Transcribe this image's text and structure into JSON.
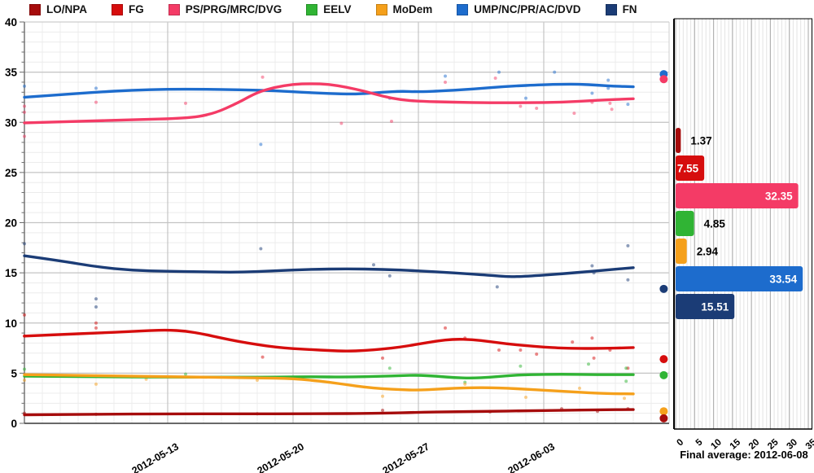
{
  "legend": [
    {
      "id": "lo",
      "label": "LO/NPA",
      "color": "#a60c0c"
    },
    {
      "id": "fg",
      "label": "FG",
      "color": "#d60d0d"
    },
    {
      "id": "ps",
      "label": "PS/PRG/MRC/DVG",
      "color": "#f43b66"
    },
    {
      "id": "eelv",
      "label": "EELV",
      "color": "#30b434"
    },
    {
      "id": "modem",
      "label": "MoDem",
      "color": "#f5a01b"
    },
    {
      "id": "ump",
      "label": "UMP/NC/PR/AC/DVD",
      "color": "#1d6ccd"
    },
    {
      "id": "fn",
      "label": "FN",
      "color": "#1b3c76"
    }
  ],
  "chart_data": [
    {
      "type": "line",
      "title": "",
      "ylim": [
        0,
        40
      ],
      "y_tick_step": 5,
      "y_minor_step": 1,
      "xlim_days": [
        0,
        36
      ],
      "x_minor_step_days": 1,
      "x_ticks": [
        {
          "label": "2012-05-13",
          "day": 8
        },
        {
          "label": "2012-05-20",
          "day": 15
        },
        {
          "label": "2012-05-27",
          "day": 22
        },
        {
          "label": "2012-06-03",
          "day": 29
        }
      ],
      "grid": true,
      "legend_position": "top",
      "series": [
        {
          "id": "fn",
          "name": "FN",
          "points": [
            [
              0,
              16.7
            ],
            [
              2,
              16.2
            ],
            [
              4,
              15.6
            ],
            [
              6,
              15.25
            ],
            [
              8,
              15.15
            ],
            [
              10,
              15.1
            ],
            [
              12,
              15.05
            ],
            [
              14,
              15.2
            ],
            [
              16,
              15.35
            ],
            [
              18,
              15.4
            ],
            [
              20,
              15.35
            ],
            [
              22,
              15.2
            ],
            [
              24,
              15.0
            ],
            [
              26,
              14.75
            ],
            [
              27,
              14.6
            ],
            [
              28,
              14.65
            ],
            [
              30,
              14.9
            ],
            [
              32,
              15.2
            ],
            [
              34,
              15.51
            ]
          ]
        },
        {
          "id": "ump",
          "name": "UMP/NC/PR/AC/DVD",
          "points": [
            [
              0,
              32.5
            ],
            [
              2,
              32.75
            ],
            [
              4,
              33.0
            ],
            [
              6,
              33.2
            ],
            [
              8,
              33.3
            ],
            [
              10,
              33.3
            ],
            [
              12,
              33.25
            ],
            [
              14,
              33.15
            ],
            [
              16,
              32.95
            ],
            [
              18,
              32.8
            ],
            [
              19,
              32.85
            ],
            [
              20,
              33.0
            ],
            [
              21,
              33.1
            ],
            [
              22,
              33.05
            ],
            [
              23,
              33.1
            ],
            [
              25,
              33.3
            ],
            [
              27,
              33.6
            ],
            [
              29,
              33.75
            ],
            [
              30,
              33.8
            ],
            [
              31,
              33.8
            ],
            [
              32,
              33.7
            ],
            [
              33,
              33.6
            ],
            [
              34,
              33.54
            ]
          ]
        },
        {
          "id": "fg",
          "name": "FG",
          "points": [
            [
              0,
              8.7
            ],
            [
              2,
              8.85
            ],
            [
              4,
              9.0
            ],
            [
              6,
              9.15
            ],
            [
              7,
              9.25
            ],
            [
              8,
              9.3
            ],
            [
              9,
              9.2
            ],
            [
              10,
              8.9
            ],
            [
              11,
              8.5
            ],
            [
              12,
              8.15
            ],
            [
              13,
              7.85
            ],
            [
              14,
              7.6
            ],
            [
              15,
              7.45
            ],
            [
              16,
              7.35
            ],
            [
              17,
              7.25
            ],
            [
              18,
              7.2
            ],
            [
              19,
              7.25
            ],
            [
              20,
              7.4
            ],
            [
              21,
              7.6
            ],
            [
              22,
              7.9
            ],
            [
              23,
              8.2
            ],
            [
              24,
              8.4
            ],
            [
              25,
              8.35
            ],
            [
              26,
              8.15
            ],
            [
              27,
              7.9
            ],
            [
              28,
              7.75
            ],
            [
              29,
              7.6
            ],
            [
              30,
              7.5
            ],
            [
              32,
              7.45
            ],
            [
              34,
              7.55
            ]
          ]
        },
        {
          "id": "lo",
          "name": "LO/NPA",
          "points": [
            [
              0,
              0.85
            ],
            [
              4,
              0.9
            ],
            [
              8,
              0.95
            ],
            [
              12,
              0.95
            ],
            [
              16,
              0.95
            ],
            [
              20,
              1.0
            ],
            [
              22,
              1.1
            ],
            [
              24,
              1.15
            ],
            [
              26,
              1.2
            ],
            [
              28,
              1.25
            ],
            [
              30,
              1.3
            ],
            [
              32,
              1.35
            ],
            [
              34,
              1.37
            ]
          ]
        },
        {
          "id": "eelv",
          "name": "EELV",
          "points": [
            [
              0,
              4.7
            ],
            [
              4,
              4.65
            ],
            [
              8,
              4.6
            ],
            [
              12,
              4.6
            ],
            [
              14,
              4.6
            ],
            [
              16,
              4.65
            ],
            [
              18,
              4.6
            ],
            [
              20,
              4.7
            ],
            [
              21,
              4.75
            ],
            [
              22,
              4.8
            ],
            [
              23,
              4.7
            ],
            [
              24,
              4.55
            ],
            [
              25,
              4.5
            ],
            [
              26,
              4.6
            ],
            [
              27,
              4.75
            ],
            [
              28,
              4.85
            ],
            [
              30,
              4.9
            ],
            [
              32,
              4.85
            ],
            [
              34,
              4.85
            ]
          ]
        },
        {
          "id": "modem",
          "name": "MoDem",
          "points": [
            [
              0,
              4.85
            ],
            [
              4,
              4.75
            ],
            [
              8,
              4.65
            ],
            [
              10,
              4.6
            ],
            [
              12,
              4.55
            ],
            [
              14,
              4.5
            ],
            [
              15,
              4.45
            ],
            [
              16,
              4.3
            ],
            [
              17,
              4.1
            ],
            [
              18,
              3.85
            ],
            [
              19,
              3.6
            ],
            [
              20,
              3.45
            ],
            [
              21,
              3.35
            ],
            [
              22,
              3.3
            ],
            [
              23,
              3.4
            ],
            [
              24,
              3.5
            ],
            [
              25,
              3.55
            ],
            [
              26,
              3.55
            ],
            [
              27,
              3.5
            ],
            [
              28,
              3.4
            ],
            [
              29,
              3.3
            ],
            [
              30,
              3.2
            ],
            [
              31,
              3.1
            ],
            [
              32,
              3.0
            ],
            [
              33,
              2.95
            ],
            [
              34,
              2.94
            ]
          ]
        },
        {
          "id": "ps",
          "name": "PS/PRG/MRC/DVG",
          "points": [
            [
              0,
              29.95
            ],
            [
              3,
              30.1
            ],
            [
              6,
              30.25
            ],
            [
              9,
              30.4
            ],
            [
              10.5,
              30.8
            ],
            [
              12,
              32.0
            ],
            [
              13,
              33.0
            ],
            [
              14,
              33.5
            ],
            [
              15,
              33.8
            ],
            [
              16,
              33.85
            ],
            [
              17,
              33.8
            ],
            [
              18,
              33.5
            ],
            [
              19,
              33.1
            ],
            [
              20,
              32.6
            ],
            [
              21,
              32.25
            ],
            [
              22,
              32.1
            ],
            [
              24,
              32.0
            ],
            [
              26,
              31.95
            ],
            [
              28,
              31.95
            ],
            [
              30,
              32.0
            ],
            [
              32,
              32.2
            ],
            [
              34,
              32.35
            ]
          ]
        }
      ],
      "scatter": {
        "ps": [
          [
            0,
            31.6
          ],
          [
            0,
            31.0
          ],
          [
            0,
            28.6
          ],
          [
            4,
            32.0
          ],
          [
            9,
            31.9
          ],
          [
            13.3,
            34.5
          ],
          [
            17.7,
            29.9
          ],
          [
            20.5,
            30.1
          ],
          [
            23.5,
            34.0
          ],
          [
            26.3,
            34.4
          ],
          [
            27.7,
            31.6
          ],
          [
            28.6,
            31.4
          ],
          [
            30.7,
            30.9
          ],
          [
            31.7,
            32.0
          ],
          [
            32.7,
            31.9
          ],
          [
            32.8,
            31.3
          ]
        ],
        "ump": [
          [
            0,
            33.6
          ],
          [
            4,
            33.4
          ],
          [
            13.2,
            27.8
          ],
          [
            20.4,
            32.4
          ],
          [
            23.5,
            34.6
          ],
          [
            26.5,
            35.0
          ],
          [
            28.0,
            32.4
          ],
          [
            29.6,
            35.0
          ],
          [
            31.7,
            32.9
          ],
          [
            32.6,
            34.2
          ],
          [
            32.6,
            33.4
          ],
          [
            33.7,
            31.8
          ]
        ],
        "fn": [
          [
            0,
            17.9
          ],
          [
            4,
            11.6
          ],
          [
            4,
            12.4
          ],
          [
            13.2,
            17.4
          ],
          [
            19.5,
            15.8
          ],
          [
            20.4,
            14.7
          ],
          [
            26.4,
            13.6
          ],
          [
            31.7,
            15.7
          ],
          [
            31.8,
            15.0
          ],
          [
            33.7,
            17.7
          ],
          [
            33.7,
            14.3
          ]
        ],
        "fg": [
          [
            0,
            10.8
          ],
          [
            0,
            8.7
          ],
          [
            4,
            10.0
          ],
          [
            4,
            9.5
          ],
          [
            13.3,
            6.6
          ],
          [
            20,
            6.5
          ],
          [
            23.5,
            9.5
          ],
          [
            24.6,
            8.5
          ],
          [
            26.5,
            7.3
          ],
          [
            27.7,
            7.3
          ],
          [
            28.6,
            6.9
          ],
          [
            30.6,
            8.1
          ],
          [
            31.7,
            8.5
          ],
          [
            31.8,
            6.5
          ],
          [
            32.7,
            7.3
          ],
          [
            33.7,
            5.5
          ]
        ],
        "eelv": [
          [
            0,
            5.4
          ],
          [
            9,
            4.9
          ],
          [
            20.4,
            5.5
          ],
          [
            24.6,
            4.1
          ],
          [
            27.7,
            5.7
          ],
          [
            31.5,
            5.9
          ],
          [
            33.6,
            5.5
          ],
          [
            33.6,
            4.2
          ]
        ],
        "modem": [
          [
            0,
            4.3
          ],
          [
            4,
            3.9
          ],
          [
            6.8,
            4.4
          ],
          [
            13,
            4.3
          ],
          [
            20,
            2.7
          ],
          [
            24.6,
            3.9
          ],
          [
            28,
            2.6
          ],
          [
            31,
            3.5
          ],
          [
            33.5,
            2.5
          ]
        ],
        "lo": [
          [
            0,
            1.0
          ],
          [
            4,
            0.9
          ],
          [
            13,
            0.95
          ],
          [
            20,
            1.3
          ],
          [
            26,
            1.15
          ],
          [
            30,
            1.45
          ],
          [
            32,
            1.2
          ],
          [
            33.7,
            1.45
          ]
        ]
      },
      "result_markers_day": 35.7,
      "result_markers": [
        {
          "id": "ump",
          "value": 34.8
        },
        {
          "id": "ps",
          "value": 34.3
        },
        {
          "id": "fn",
          "value": 13.4
        },
        {
          "id": "fg",
          "value": 6.4
        },
        {
          "id": "eelv",
          "value": 4.8
        },
        {
          "id": "modem",
          "value": 1.2
        },
        {
          "id": "lo",
          "value": 0.5
        }
      ]
    },
    {
      "type": "bar",
      "orientation": "horizontal",
      "categories": [
        "LO/NPA",
        "FG",
        "PS/PRG/MRC/DVG",
        "EELV",
        "MoDem",
        "UMP/NC/PR/AC/DVD",
        "FN"
      ],
      "category_ids": [
        "lo",
        "fg",
        "ps",
        "eelv",
        "modem",
        "ump",
        "fn"
      ],
      "values": [
        1.37,
        7.55,
        32.35,
        4.85,
        2.94,
        33.54,
        15.51
      ],
      "value_labels": [
        "1.37",
        "7.55",
        "32.35",
        "4.85",
        "2.94",
        "33.54",
        "15.51"
      ],
      "xlim": [
        0,
        35
      ],
      "x_ticks": [
        0,
        5,
        10,
        15,
        20,
        25,
        30,
        35
      ],
      "x_minor_step": 1,
      "grid": true,
      "footer": "Final average: 2012-06-08"
    }
  ]
}
